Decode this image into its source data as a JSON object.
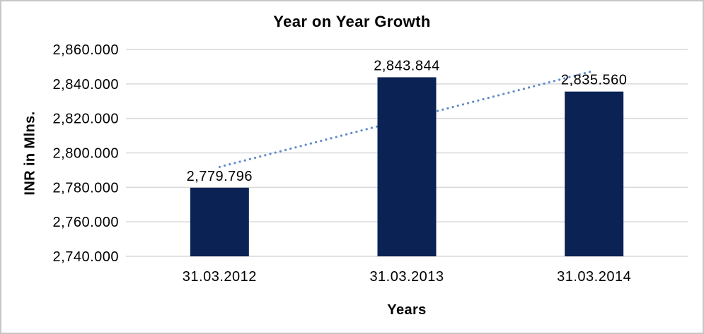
{
  "window": {
    "background": "#ffffff",
    "border_color": "#c6c6c6"
  },
  "chart_data": {
    "type": "bar",
    "title": "Year on Year Growth",
    "xlabel": "Years",
    "ylabel": "INR in Mlns.",
    "categories": [
      "31.03.2012",
      "31.03.2013",
      "31.03.2014"
    ],
    "series": [
      {
        "name": "INR in Mlns.",
        "values": [
          2779.796,
          2843.844,
          2835.56
        ],
        "data_labels": [
          "2,779.796",
          "2,843.844",
          "2,835.560"
        ]
      }
    ],
    "ylim": [
      2740,
      2860
    ],
    "ytick_step": 20,
    "yticks": [
      {
        "value": 2860,
        "label": "2,860.000"
      },
      {
        "value": 2840,
        "label": "2,840.000"
      },
      {
        "value": 2820,
        "label": "2,820.000"
      },
      {
        "value": 2800,
        "label": "2,800.000"
      },
      {
        "value": 2780,
        "label": "2,780.000"
      },
      {
        "value": 2760,
        "label": "2,760.000"
      },
      {
        "value": 2740,
        "label": "2,740.000"
      }
    ],
    "grid": true,
    "legend": "none",
    "colors": {
      "bar_fill": "#0a2254",
      "gridline": "#d9d9d9",
      "text": "#000000",
      "trendline": "#5f8ccd"
    },
    "trendline": {
      "type": "linear",
      "style": "dotted",
      "color": "#5f8ccd",
      "endpoint_values": [
        2791.85,
        2847.62
      ]
    }
  }
}
